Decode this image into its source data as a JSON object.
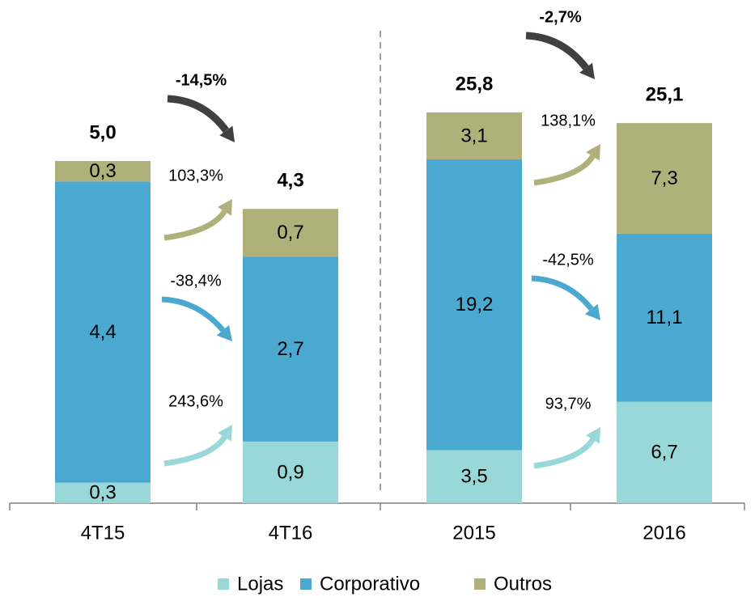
{
  "chart_data": [
    {
      "type": "bar",
      "stacked": true,
      "categories": [
        "4T15",
        "4T16"
      ],
      "totals": [
        5.0,
        4.3
      ],
      "total_labels": [
        "5,0",
        "4,3"
      ],
      "total_change": "-14,5%",
      "series": [
        {
          "name": "Lojas",
          "color": "#99d8d8",
          "values": [
            0.3,
            0.9
          ],
          "value_labels": [
            "0,3",
            "0,9"
          ],
          "change": "243,6%"
        },
        {
          "name": "Corporativo",
          "color": "#4ba9d1",
          "values": [
            4.4,
            2.7
          ],
          "value_labels": [
            "4,4",
            "2,7"
          ],
          "change": "-38,4%"
        },
        {
          "name": "Outros",
          "color": "#afb07a",
          "values": [
            0.3,
            0.7
          ],
          "value_labels": [
            "0,3",
            "0,7"
          ],
          "change": "103,3%"
        }
      ]
    },
    {
      "type": "bar",
      "stacked": true,
      "categories": [
        "2015",
        "2016"
      ],
      "totals": [
        25.8,
        25.1
      ],
      "total_labels": [
        "25,8",
        "25,1"
      ],
      "total_change": "-2,7%",
      "series": [
        {
          "name": "Lojas",
          "color": "#99d8d8",
          "values": [
            3.5,
            6.7
          ],
          "value_labels": [
            "3,5",
            "6,7"
          ],
          "change": "93,7%"
        },
        {
          "name": "Corporativo",
          "color": "#4ba9d1",
          "values": [
            19.2,
            11.1
          ],
          "value_labels": [
            "19,2",
            "11,1"
          ],
          "change": "-42,5%"
        },
        {
          "name": "Outros",
          "color": "#afb07a",
          "values": [
            3.1,
            7.3
          ],
          "value_labels": [
            "3,1",
            "7,3"
          ],
          "change": "138,1%"
        }
      ]
    }
  ]
}
